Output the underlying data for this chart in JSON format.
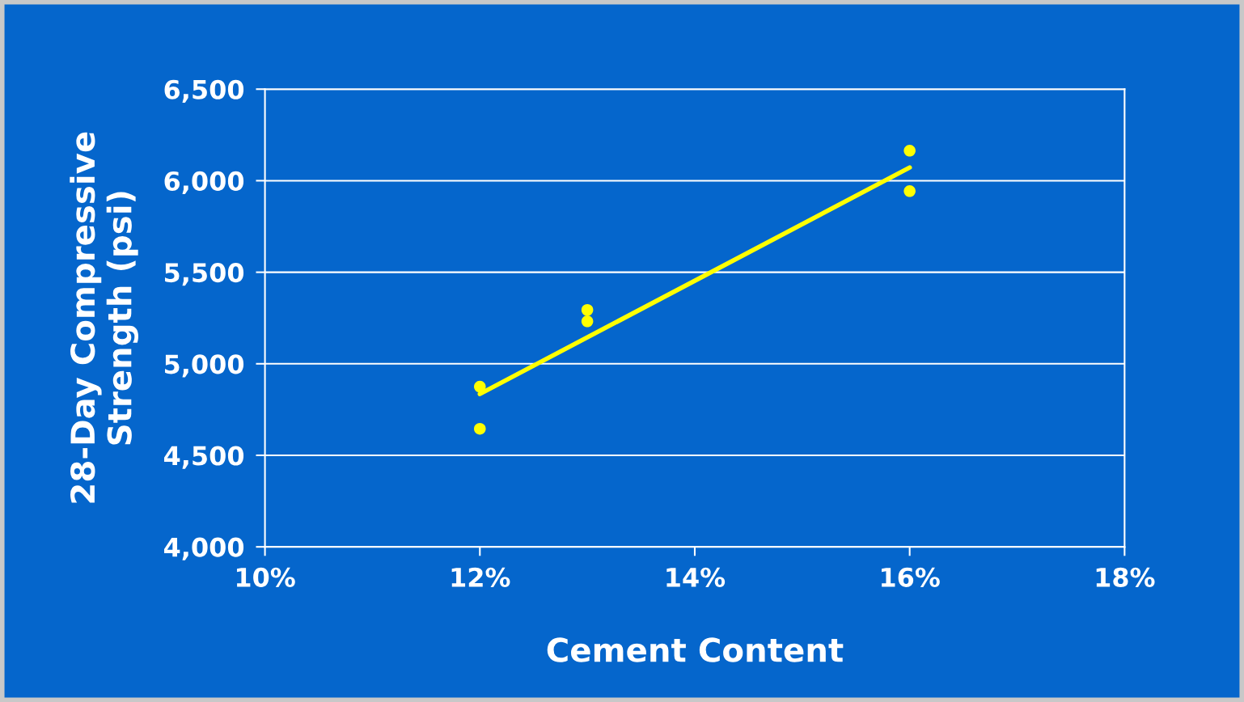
{
  "chart_data": {
    "type": "scatter",
    "xlabel": "Cement Content",
    "ylabel": "28-Day Compressive\nStrength (psi)",
    "series": [
      {
        "marker": "circle",
        "color": "#ffff00",
        "x": [
          12,
          12,
          13,
          13,
          16,
          16
        ],
        "values": [
          4875,
          4645,
          5294,
          5232,
          6164,
          5943
        ]
      },
      {
        "type": "line",
        "marker": "none",
        "color": "#ffff00",
        "x": [
          12,
          16
        ],
        "values": [
          4835,
          6072
        ]
      }
    ],
    "xlim": [
      10,
      18
    ],
    "xticks": [
      {
        "value": 10,
        "label": "10%"
      },
      {
        "value": 12,
        "label": "12%"
      },
      {
        "value": 14,
        "label": "14%"
      },
      {
        "value": 16,
        "label": "16%"
      },
      {
        "value": 18,
        "label": "18%"
      }
    ],
    "ylim": [
      4000,
      6500
    ],
    "yticks": [
      {
        "value": 4000,
        "label": "4,000"
      },
      {
        "value": 4500,
        "label": "4,500"
      },
      {
        "value": 5000,
        "label": "5,000"
      },
      {
        "value": 5500,
        "label": "5,500"
      },
      {
        "value": 6000,
        "label": "6,000"
      },
      {
        "value": 6500,
        "label": "6,500"
      }
    ],
    "grid": "y",
    "legend": false
  }
}
